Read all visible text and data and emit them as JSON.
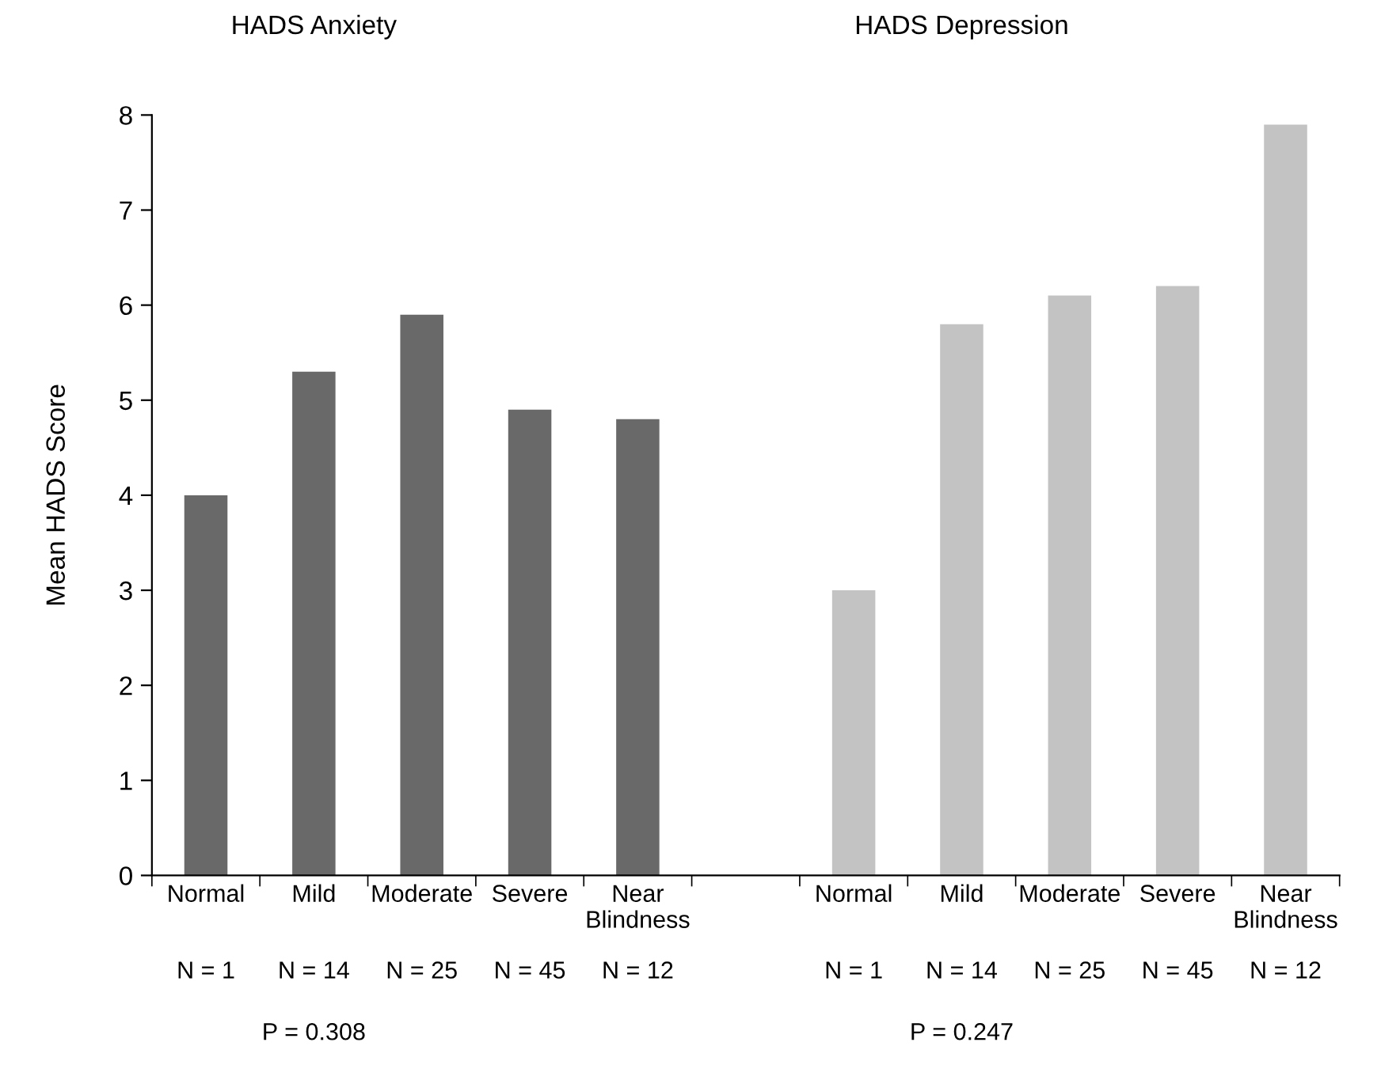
{
  "chart_data": {
    "type": "bar",
    "categories": [
      "Normal",
      "Mild",
      "Moderate",
      "Severe",
      "Near\nBlindness",
      null,
      "Normal",
      "Mild",
      "Moderate",
      "Severe",
      "Near\nBlindness"
    ],
    "series": [
      {
        "color": "#696969",
        "values": [
          4.0,
          5.3,
          5.9,
          4.9,
          4.8,
          null,
          null,
          null,
          null,
          null,
          null
        ]
      },
      {
        "color": "#c3c3c3",
        "values": [
          null,
          null,
          null,
          null,
          null,
          null,
          3.0,
          5.8,
          6.1,
          6.2,
          7.9
        ]
      }
    ],
    "ylabel": "Mean HADS Score",
    "ylim": [
      0,
      8
    ],
    "yticks": [
      0,
      1,
      2,
      3,
      4,
      5,
      6,
      7,
      8
    ],
    "grid": false,
    "annotations": [
      "HADS Anxiety",
      "HADS Depression",
      "N = 1",
      "N = 14",
      "N = 25",
      "N = 45",
      "N = 12",
      "N = 1",
      "N = 14",
      "N = 25",
      "N = 45",
      "N = 12",
      "P = 0.308",
      "P = 0.247"
    ]
  }
}
